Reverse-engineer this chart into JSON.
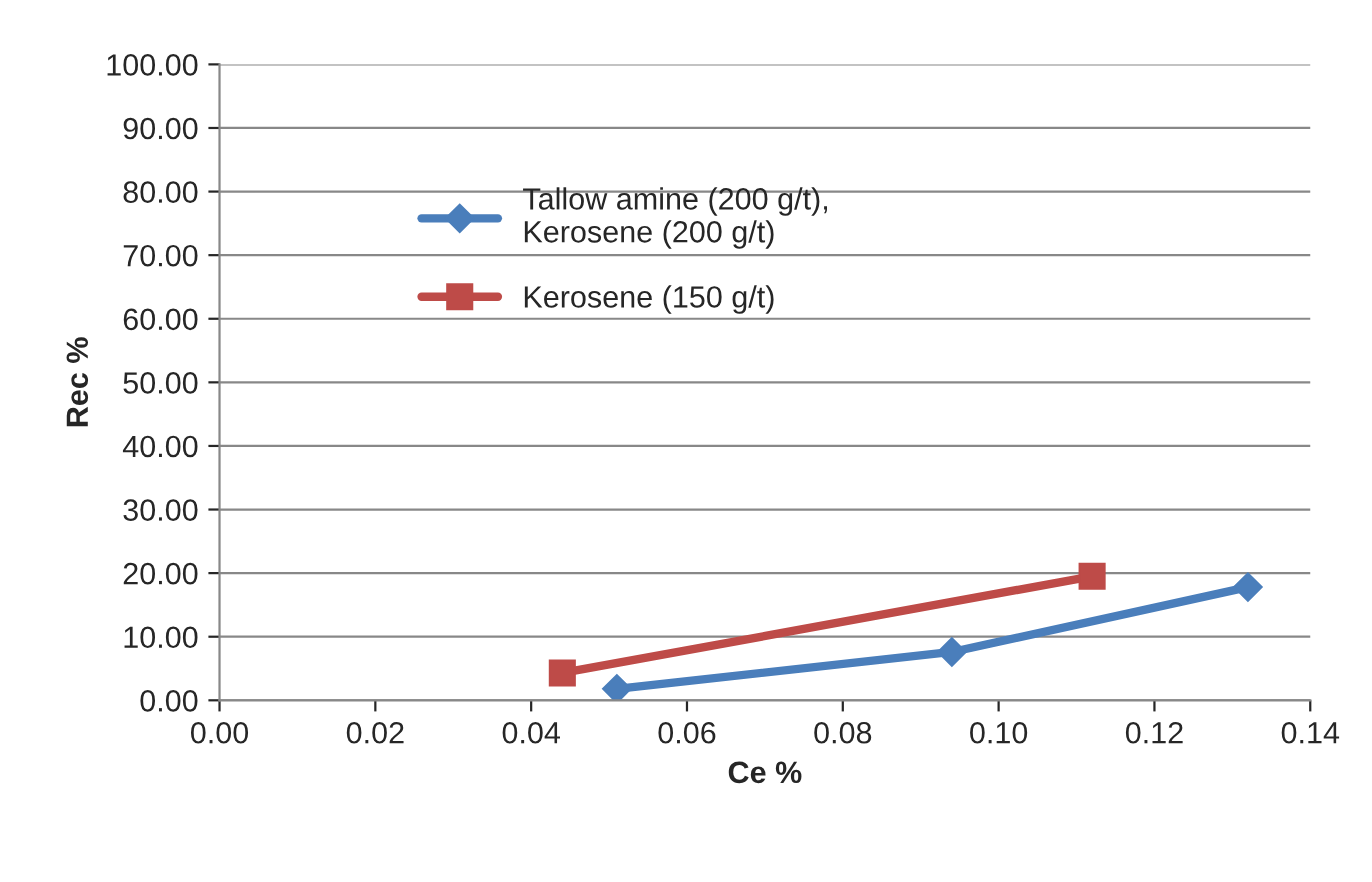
{
  "chart_data": {
    "type": "line",
    "xlabel": "Ce %",
    "ylabel": "Rec %",
    "series": [
      {
        "name": "Tallow amine (200 g/t),\nKerosene (200 g/t)",
        "color": "#4a7ebb",
        "x": [
          0.051,
          0.094,
          0.132
        ],
        "values": [
          1.8,
          7.6,
          17.8
        ],
        "marker": "diamond"
      },
      {
        "name": "Kerosene (150 g/t)",
        "color": "#be4b48",
        "x": [
          0.044,
          0.112
        ],
        "values": [
          4.3,
          19.5
        ],
        "marker": "square"
      }
    ],
    "xlim": [
      0,
      0.14
    ],
    "xticks": [
      {
        "value": 0,
        "label": "0.00"
      },
      {
        "value": 0.02,
        "label": "0.02"
      },
      {
        "value": 0.04,
        "label": "0.04"
      },
      {
        "value": 0.06,
        "label": "0.06"
      },
      {
        "value": 0.08,
        "label": "0.08"
      },
      {
        "value": 0.1,
        "label": "0.10"
      },
      {
        "value": 0.12,
        "label": "0.12"
      },
      {
        "value": 0.14,
        "label": "0.14"
      }
    ],
    "ylim": [
      0,
      100
    ],
    "yticks": [
      {
        "value": 0,
        "label": "0.00"
      },
      {
        "value": 10,
        "label": "10.00"
      },
      {
        "value": 20,
        "label": "20.00"
      },
      {
        "value": 30,
        "label": "30.00"
      },
      {
        "value": 40,
        "label": "40.00"
      },
      {
        "value": 50,
        "label": "50.00"
      },
      {
        "value": 60,
        "label": "60.00"
      },
      {
        "value": 70,
        "label": "70.00"
      },
      {
        "value": 80,
        "label": "80.00"
      },
      {
        "value": 90,
        "label": "90.00"
      },
      {
        "value": 100,
        "label": "100.00"
      }
    ],
    "grid": "y",
    "legend": "top left",
    "line_style": "solid"
  }
}
